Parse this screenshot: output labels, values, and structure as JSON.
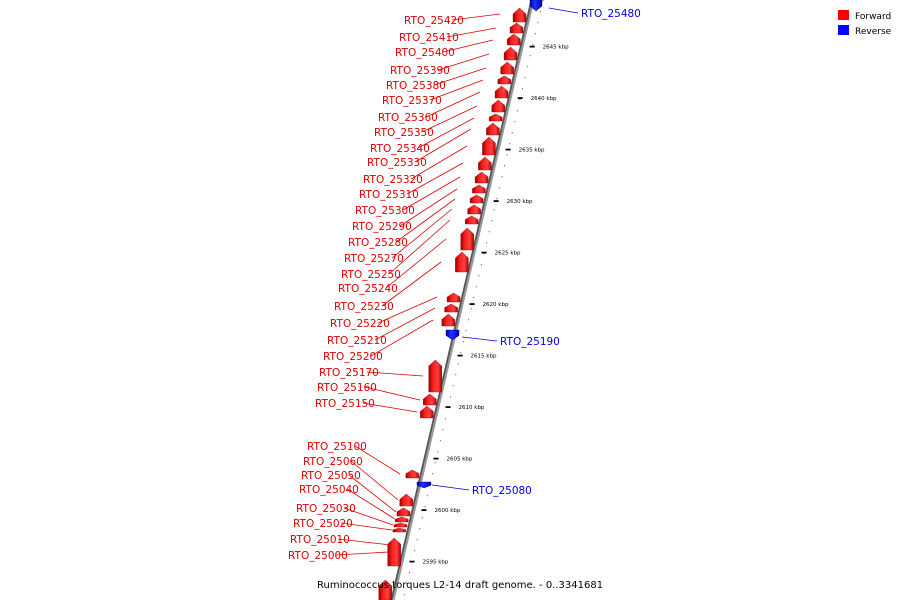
{
  "legend": [
    {
      "label": "Forward",
      "color": "#ff0000"
    },
    {
      "label": "Reverse",
      "color": "#0000ff"
    }
  ],
  "caption": "Ruminococcus torques L2-14 draft genome. - 0..3341681",
  "scale": {
    "unit": "kbp",
    "ticks": [
      {
        "kbp": 2645,
        "label": "2645 kbp"
      },
      {
        "kbp": 2640,
        "label": "2640 kbp"
      },
      {
        "kbp": 2635,
        "label": "2635 kbp"
      },
      {
        "kbp": 2630,
        "label": "2630 kbp"
      },
      {
        "kbp": 2625,
        "label": "2625 kbp"
      },
      {
        "kbp": 2620,
        "label": "2620 kbp"
      },
      {
        "kbp": 2615,
        "label": "2615 kbp"
      },
      {
        "kbp": 2610,
        "label": "2610 kbp"
      },
      {
        "kbp": 2605,
        "label": "2605 kbp"
      },
      {
        "kbp": 2600,
        "label": "2600 kbp"
      },
      {
        "kbp": 2595,
        "label": "2595 kbp"
      }
    ]
  },
  "genes": [
    {
      "id": "RTO_25480",
      "strand": "reverse"
    },
    {
      "id": "RTO_25420",
      "strand": "forward"
    },
    {
      "id": "RTO_25410",
      "strand": "forward"
    },
    {
      "id": "RTO_25400",
      "strand": "forward"
    },
    {
      "id": "RTO_25390",
      "strand": "forward"
    },
    {
      "id": "RTO_25380",
      "strand": "forward"
    },
    {
      "id": "RTO_25370",
      "strand": "forward"
    },
    {
      "id": "RTO_25360",
      "strand": "forward"
    },
    {
      "id": "RTO_25350",
      "strand": "forward"
    },
    {
      "id": "RTO_25340",
      "strand": "forward"
    },
    {
      "id": "RTO_25330",
      "strand": "forward"
    },
    {
      "id": "RTO_25320",
      "strand": "forward"
    },
    {
      "id": "RTO_25310",
      "strand": "forward"
    },
    {
      "id": "RTO_25300",
      "strand": "forward"
    },
    {
      "id": "RTO_25290",
      "strand": "forward"
    },
    {
      "id": "RTO_25280",
      "strand": "forward"
    },
    {
      "id": "RTO_25270",
      "strand": "forward"
    },
    {
      "id": "RTO_25250",
      "strand": "forward"
    },
    {
      "id": "RTO_25240",
      "strand": "forward"
    },
    {
      "id": "RTO_25230",
      "strand": "forward"
    },
    {
      "id": "RTO_25220",
      "strand": "forward"
    },
    {
      "id": "RTO_25210",
      "strand": "forward"
    },
    {
      "id": "RTO_25200",
      "strand": "forward"
    },
    {
      "id": "RTO_25190",
      "strand": "reverse"
    },
    {
      "id": "RTO_25170",
      "strand": "forward"
    },
    {
      "id": "RTO_25160",
      "strand": "forward"
    },
    {
      "id": "RTO_25150",
      "strand": "forward"
    },
    {
      "id": "RTO_25100",
      "strand": "forward"
    },
    {
      "id": "RTO_25080",
      "strand": "reverse"
    },
    {
      "id": "RTO_25060",
      "strand": "forward"
    },
    {
      "id": "RTO_25050",
      "strand": "forward"
    },
    {
      "id": "RTO_25040",
      "strand": "forward"
    },
    {
      "id": "RTO_25030",
      "strand": "forward"
    },
    {
      "id": "RTO_25020",
      "strand": "forward"
    },
    {
      "id": "RTO_25010",
      "strand": "forward"
    },
    {
      "id": "RTO_25000",
      "strand": "forward"
    }
  ]
}
